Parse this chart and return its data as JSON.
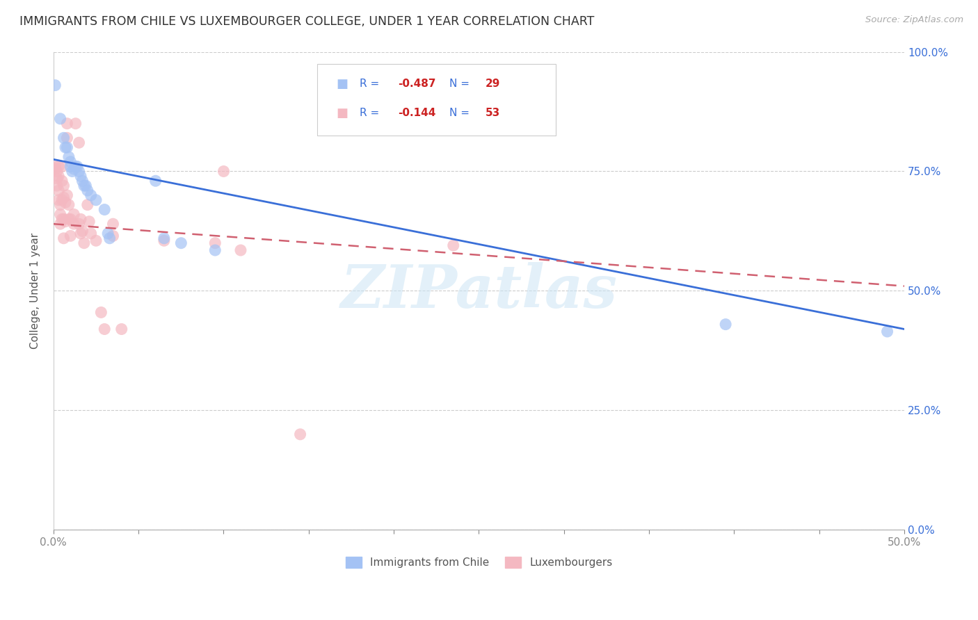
{
  "title": "IMMIGRANTS FROM CHILE VS LUXEMBOURGER COLLEGE, UNDER 1 YEAR CORRELATION CHART",
  "source": "Source: ZipAtlas.com",
  "ylabel_label": "College, Under 1 year",
  "xmin": 0.0,
  "xmax": 0.5,
  "ymin": 0.0,
  "ymax": 1.0,
  "legend_r_blue": "-0.487",
  "legend_n_blue": "29",
  "legend_r_pink": "-0.144",
  "legend_n_pink": "53",
  "legend_label_blue": "Immigrants from Chile",
  "legend_label_pink": "Luxembourgers",
  "blue_color": "#a4c2f4",
  "pink_color": "#f4b8c1",
  "blue_line_color": "#3a6fd8",
  "pink_line_color": "#d06070",
  "blue_line_x": [
    0.0,
    0.5
  ],
  "blue_line_y": [
    0.775,
    0.42
  ],
  "pink_line_x": [
    0.0,
    0.5
  ],
  "pink_line_y": [
    0.64,
    0.51
  ],
  "watermark": "ZIPatlas",
  "blue_points": [
    [
      0.001,
      0.93
    ],
    [
      0.004,
      0.86
    ],
    [
      0.006,
      0.82
    ],
    [
      0.007,
      0.8
    ],
    [
      0.008,
      0.8
    ],
    [
      0.009,
      0.78
    ],
    [
      0.01,
      0.77
    ],
    [
      0.01,
      0.76
    ],
    [
      0.011,
      0.75
    ],
    [
      0.012,
      0.755
    ],
    [
      0.013,
      0.76
    ],
    [
      0.014,
      0.76
    ],
    [
      0.015,
      0.75
    ],
    [
      0.016,
      0.74
    ],
    [
      0.017,
      0.73
    ],
    [
      0.018,
      0.72
    ],
    [
      0.019,
      0.72
    ],
    [
      0.02,
      0.71
    ],
    [
      0.022,
      0.7
    ],
    [
      0.025,
      0.69
    ],
    [
      0.03,
      0.67
    ],
    [
      0.032,
      0.62
    ],
    [
      0.033,
      0.61
    ],
    [
      0.06,
      0.73
    ],
    [
      0.065,
      0.61
    ],
    [
      0.075,
      0.6
    ],
    [
      0.095,
      0.585
    ],
    [
      0.395,
      0.43
    ],
    [
      0.49,
      0.415
    ]
  ],
  "pink_points": [
    [
      0.001,
      0.76
    ],
    [
      0.001,
      0.755
    ],
    [
      0.002,
      0.75
    ],
    [
      0.002,
      0.735
    ],
    [
      0.002,
      0.72
    ],
    [
      0.003,
      0.76
    ],
    [
      0.003,
      0.74
    ],
    [
      0.003,
      0.71
    ],
    [
      0.003,
      0.69
    ],
    [
      0.004,
      0.68
    ],
    [
      0.004,
      0.66
    ],
    [
      0.004,
      0.64
    ],
    [
      0.005,
      0.76
    ],
    [
      0.005,
      0.73
    ],
    [
      0.005,
      0.69
    ],
    [
      0.005,
      0.65
    ],
    [
      0.006,
      0.72
    ],
    [
      0.006,
      0.695
    ],
    [
      0.006,
      0.65
    ],
    [
      0.006,
      0.61
    ],
    [
      0.007,
      0.685
    ],
    [
      0.007,
      0.645
    ],
    [
      0.008,
      0.85
    ],
    [
      0.008,
      0.82
    ],
    [
      0.008,
      0.7
    ],
    [
      0.009,
      0.68
    ],
    [
      0.009,
      0.65
    ],
    [
      0.01,
      0.65
    ],
    [
      0.01,
      0.615
    ],
    [
      0.012,
      0.66
    ],
    [
      0.012,
      0.64
    ],
    [
      0.013,
      0.85
    ],
    [
      0.015,
      0.81
    ],
    [
      0.015,
      0.64
    ],
    [
      0.016,
      0.65
    ],
    [
      0.016,
      0.62
    ],
    [
      0.017,
      0.625
    ],
    [
      0.018,
      0.6
    ],
    [
      0.02,
      0.68
    ],
    [
      0.021,
      0.645
    ],
    [
      0.022,
      0.62
    ],
    [
      0.025,
      0.605
    ],
    [
      0.028,
      0.455
    ],
    [
      0.03,
      0.42
    ],
    [
      0.035,
      0.64
    ],
    [
      0.035,
      0.615
    ],
    [
      0.04,
      0.42
    ],
    [
      0.065,
      0.605
    ],
    [
      0.095,
      0.6
    ],
    [
      0.1,
      0.75
    ],
    [
      0.11,
      0.585
    ],
    [
      0.145,
      0.2
    ],
    [
      0.235,
      0.595
    ]
  ]
}
